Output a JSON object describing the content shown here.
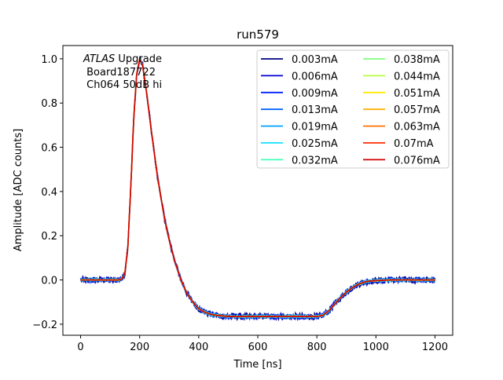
{
  "chart_data": {
    "type": "line",
    "title": "run579",
    "xlabel": "Time [ns]",
    "ylabel": "Amplitude [ADC counts]",
    "xlim": [
      -60,
      1260
    ],
    "ylim": [
      -0.25,
      1.06
    ],
    "xticks": [
      0,
      200,
      400,
      600,
      800,
      1000,
      1200
    ],
    "yticks": [
      -0.2,
      0.0,
      0.2,
      0.4,
      0.6,
      0.8,
      1.0
    ],
    "xtick_labels": [
      "0",
      "200",
      "400",
      "600",
      "800",
      "1000",
      "1200"
    ],
    "ytick_labels": [
      "−0.2",
      "0.0",
      "0.2",
      "0.4",
      "0.6",
      "0.8",
      "1.0"
    ],
    "grid": false,
    "legend_position": "top-right",
    "legend_columns": 2,
    "annotations": {
      "italic": "ATLAS",
      "line1_rest": " Upgrade",
      "line2": " Board187722",
      "line3": " Ch064 50dB hi"
    },
    "waveform_template": {
      "x": [
        0,
        130,
        140,
        150,
        160,
        170,
        180,
        190,
        200,
        210,
        220,
        230,
        240,
        250,
        260,
        270,
        280,
        290,
        300,
        320,
        340,
        360,
        380,
        400,
        420,
        440,
        460,
        500,
        600,
        700,
        800,
        820,
        840,
        860,
        880,
        900,
        920,
        940,
        960,
        980,
        1000,
        1050,
        1100,
        1150,
        1200
      ],
      "y": [
        0.0,
        0.0,
        0.005,
        0.03,
        0.15,
        0.42,
        0.73,
        0.93,
        1.0,
        0.97,
        0.88,
        0.78,
        0.67,
        0.57,
        0.47,
        0.39,
        0.31,
        0.24,
        0.18,
        0.08,
        0.0,
        -0.06,
        -0.1,
        -0.13,
        -0.145,
        -0.155,
        -0.16,
        -0.165,
        -0.165,
        -0.165,
        -0.165,
        -0.16,
        -0.14,
        -0.11,
        -0.08,
        -0.055,
        -0.035,
        -0.02,
        -0.01,
        -0.005,
        -0.003,
        0.0,
        0.0,
        0.0,
        0.0
      ]
    },
    "series": [
      {
        "name": "0.003mA",
        "color": "#00007f"
      },
      {
        "name": "0.006mA",
        "color": "#0000d0"
      },
      {
        "name": "0.009mA",
        "color": "#0020ff"
      },
      {
        "name": "0.013mA",
        "color": "#0060ff"
      },
      {
        "name": "0.019mA",
        "color": "#00a0ff"
      },
      {
        "name": "0.025mA",
        "color": "#10e0ff"
      },
      {
        "name": "0.032mA",
        "color": "#40ffb7"
      },
      {
        "name": "0.038mA",
        "color": "#80ff7c"
      },
      {
        "name": "0.044mA",
        "color": "#b7ff40"
      },
      {
        "name": "0.051mA",
        "color": "#ffea00"
      },
      {
        "name": "0.057mA",
        "color": "#ffae00"
      },
      {
        "name": "0.063mA",
        "color": "#ff7300"
      },
      {
        "name": "0.07mA",
        "color": "#ff2900"
      },
      {
        "name": "0.076mA",
        "color": "#d00000"
      }
    ]
  }
}
